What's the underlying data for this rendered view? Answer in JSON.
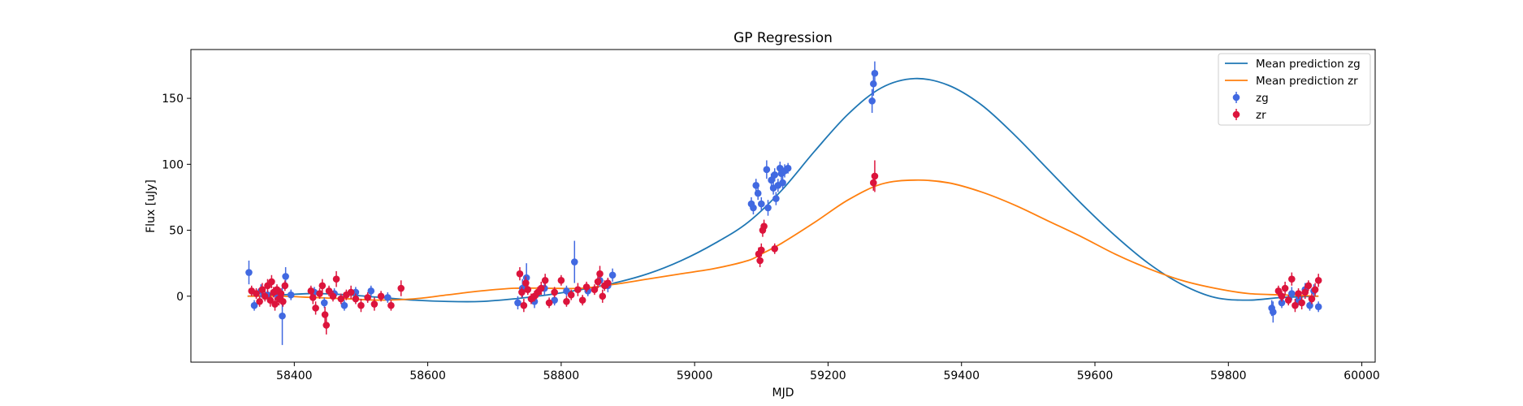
{
  "chart_data": {
    "type": "scatter",
    "title": "GP Regression",
    "xlabel": "MJD",
    "ylabel": "Flux [uJy]",
    "xlim": [
      58245,
      60020
    ],
    "ylim": [
      -50,
      187
    ],
    "xticks": [
      58400,
      58600,
      58800,
      59000,
      59200,
      59400,
      59600,
      59800,
      60000
    ],
    "yticks": [
      0,
      50,
      100,
      150
    ],
    "grid": false,
    "legend_position": "top-right",
    "series": [
      {
        "name": "Mean prediction zg",
        "kind": "line",
        "color": "#1f77b4",
        "x": [
          58330,
          58380,
          58430,
          58480,
          58530,
          58580,
          58630,
          58680,
          58730,
          58780,
          58830,
          58880,
          58930,
          58980,
          59030,
          59080,
          59130,
          59180,
          59230,
          59280,
          59330,
          59380,
          59430,
          59480,
          59530,
          59580,
          59630,
          59680,
          59730,
          59780,
          59830,
          59880,
          59935
        ],
        "y": [
          0,
          1,
          2,
          1,
          -1,
          -3,
          -4,
          -4,
          -2,
          1,
          5,
          10,
          17,
          27,
          40,
          56,
          80,
          110,
          138,
          158,
          165,
          160,
          145,
          122,
          96,
          70,
          46,
          25,
          9,
          -1,
          -3,
          -1,
          0
        ]
      },
      {
        "name": "Mean prediction zr",
        "kind": "line",
        "color": "#ff7f0e",
        "x": [
          58330,
          58380,
          58430,
          58480,
          58530,
          58580,
          58630,
          58680,
          58730,
          58780,
          58830,
          58880,
          58930,
          58980,
          59030,
          59080,
          59100,
          59130,
          59180,
          59230,
          59280,
          59330,
          59380,
          59430,
          59480,
          59530,
          59580,
          59630,
          59680,
          59730,
          59780,
          59830,
          59880,
          59935
        ],
        "y": [
          0,
          0,
          -1,
          -2,
          -3,
          -2,
          1,
          4,
          6,
          6,
          6,
          9,
          13,
          17,
          21,
          27,
          32,
          40,
          56,
          73,
          85,
          88,
          86,
          79,
          69,
          57,
          45,
          32,
          21,
          12,
          6,
          2,
          1,
          0
        ]
      },
      {
        "name": "zg",
        "kind": "errorbar",
        "color": "#4169e1",
        "points": [
          [
            58332,
            18,
            9
          ],
          [
            58340,
            -7,
            4
          ],
          [
            58350,
            4,
            5
          ],
          [
            58360,
            1,
            4
          ],
          [
            58372,
            2,
            5
          ],
          [
            58382,
            -15,
            22
          ],
          [
            58387,
            15,
            7
          ],
          [
            58395,
            1,
            4
          ],
          [
            58430,
            3,
            4
          ],
          [
            58445,
            -5,
            4
          ],
          [
            58460,
            2,
            4
          ],
          [
            58475,
            -7,
            4
          ],
          [
            58492,
            3,
            4
          ],
          [
            58515,
            4,
            4
          ],
          [
            58540,
            -1,
            4
          ],
          [
            58735,
            -5,
            5
          ],
          [
            58742,
            6,
            7
          ],
          [
            58748,
            14,
            11
          ],
          [
            58760,
            -4,
            5
          ],
          [
            58775,
            6,
            5
          ],
          [
            58790,
            -3,
            4
          ],
          [
            58808,
            4,
            4
          ],
          [
            58820,
            26,
            16
          ],
          [
            58840,
            4,
            4
          ],
          [
            58858,
            12,
            5
          ],
          [
            58870,
            8,
            5
          ],
          [
            58877,
            16,
            5
          ],
          [
            59085,
            70,
            5
          ],
          [
            59088,
            67,
            5
          ],
          [
            59092,
            84,
            5
          ],
          [
            59095,
            78,
            5
          ],
          [
            59100,
            70,
            5
          ],
          [
            59108,
            96,
            7
          ],
          [
            59110,
            67,
            6
          ],
          [
            59115,
            88,
            5
          ],
          [
            59118,
            82,
            5
          ],
          [
            59120,
            92,
            5
          ],
          [
            59122,
            74,
            5
          ],
          [
            59125,
            84,
            5
          ],
          [
            59128,
            97,
            5
          ],
          [
            59130,
            93,
            5
          ],
          [
            59132,
            86,
            5
          ],
          [
            59135,
            95,
            5
          ],
          [
            59140,
            97,
            4
          ],
          [
            59266,
            148,
            9
          ],
          [
            59268,
            161,
            9
          ],
          [
            59270,
            169,
            9
          ],
          [
            59865,
            -9,
            6
          ],
          [
            59867,
            -12,
            8
          ],
          [
            59880,
            -5,
            4
          ],
          [
            59895,
            2,
            5
          ],
          [
            59905,
            -3,
            4
          ],
          [
            59915,
            5,
            5
          ],
          [
            59922,
            -7,
            4
          ],
          [
            59928,
            4,
            5
          ],
          [
            59935,
            -8,
            4
          ]
        ]
      },
      {
        "name": "zr",
        "kind": "errorbar",
        "color": "#dc143c",
        "points": [
          [
            58336,
            4,
            4
          ],
          [
            58343,
            2,
            4
          ],
          [
            58348,
            -4,
            4
          ],
          [
            58352,
            5,
            5
          ],
          [
            58356,
            0,
            4
          ],
          [
            58360,
            8,
            5
          ],
          [
            58364,
            -3,
            5
          ],
          [
            58366,
            11,
            5
          ],
          [
            58369,
            3,
            4
          ],
          [
            58371,
            -6,
            5
          ],
          [
            58374,
            5,
            4
          ],
          [
            58377,
            -2,
            5
          ],
          [
            58380,
            2,
            4
          ],
          [
            58383,
            -4,
            4
          ],
          [
            58386,
            8,
            4
          ],
          [
            58425,
            4,
            4
          ],
          [
            58428,
            -1,
            5
          ],
          [
            58432,
            -9,
            5
          ],
          [
            58438,
            2,
            4
          ],
          [
            58442,
            8,
            5
          ],
          [
            58446,
            -14,
            6
          ],
          [
            58448,
            -22,
            7
          ],
          [
            58452,
            4,
            4
          ],
          [
            58458,
            0,
            4
          ],
          [
            58463,
            13,
            6
          ],
          [
            58470,
            -2,
            4
          ],
          [
            58478,
            1,
            4
          ],
          [
            58485,
            3,
            5
          ],
          [
            58492,
            -2,
            4
          ],
          [
            58500,
            -7,
            5
          ],
          [
            58510,
            -1,
            4
          ],
          [
            58520,
            -6,
            5
          ],
          [
            58530,
            0,
            4
          ],
          [
            58545,
            -7,
            4
          ],
          [
            58560,
            6,
            6
          ],
          [
            58738,
            17,
            5
          ],
          [
            58741,
            3,
            4
          ],
          [
            58744,
            -7,
            5
          ],
          [
            58747,
            10,
            5
          ],
          [
            58750,
            5,
            4
          ],
          [
            58755,
            -2,
            4
          ],
          [
            58760,
            0,
            4
          ],
          [
            58765,
            3,
            4
          ],
          [
            58770,
            6,
            5
          ],
          [
            58776,
            12,
            5
          ],
          [
            58782,
            -5,
            4
          ],
          [
            58790,
            3,
            4
          ],
          [
            58800,
            12,
            4
          ],
          [
            58808,
            -4,
            4
          ],
          [
            58815,
            1,
            4
          ],
          [
            58825,
            5,
            5
          ],
          [
            58832,
            -3,
            4
          ],
          [
            58838,
            7,
            4
          ],
          [
            58850,
            5,
            4
          ],
          [
            58855,
            11,
            5
          ],
          [
            58858,
            17,
            6
          ],
          [
            58862,
            0,
            5
          ],
          [
            58865,
            8,
            4
          ],
          [
            58870,
            10,
            4
          ],
          [
            59096,
            32,
            5
          ],
          [
            59098,
            27,
            5
          ],
          [
            59100,
            35,
            5
          ],
          [
            59102,
            50,
            5
          ],
          [
            59104,
            53,
            5
          ],
          [
            59120,
            36,
            4
          ],
          [
            59268,
            86,
            6
          ],
          [
            59270,
            91,
            12
          ],
          [
            59875,
            4,
            4
          ],
          [
            59880,
            0,
            4
          ],
          [
            59885,
            6,
            5
          ],
          [
            59890,
            -3,
            4
          ],
          [
            59895,
            13,
            5
          ],
          [
            59900,
            -7,
            5
          ],
          [
            59905,
            2,
            4
          ],
          [
            59910,
            -5,
            5
          ],
          [
            59915,
            3,
            5
          ],
          [
            59920,
            8,
            4
          ],
          [
            59925,
            -2,
            4
          ],
          [
            59930,
            5,
            5
          ],
          [
            59935,
            12,
            5
          ]
        ]
      }
    ]
  }
}
